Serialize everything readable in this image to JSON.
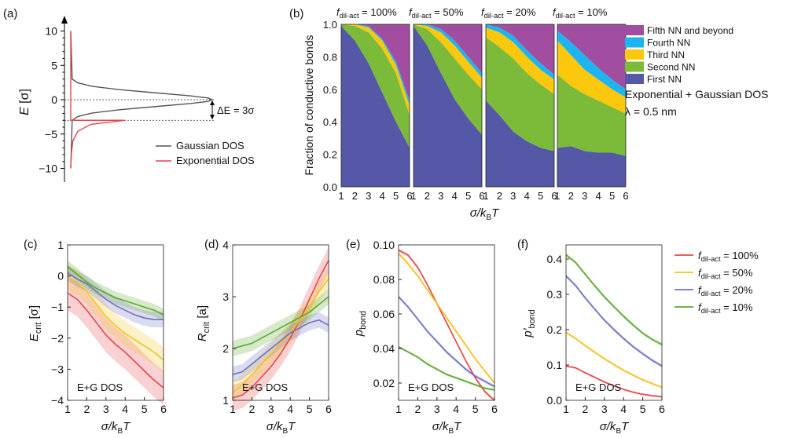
{
  "colors": {
    "red": "#e8474a",
    "yellow": "#f3c21e",
    "blue": "#6f6fc4",
    "green": "#5ba82d",
    "fifth": "#a24ea0",
    "fourth": "#1eb4ef",
    "third": "#fbc80e",
    "second": "#7cbb3a",
    "first": "#5558a7",
    "gauss": "#555555",
    "exp": "#e8474a"
  },
  "panels": {
    "a": "(a)",
    "b": "(b)",
    "c": "(c)",
    "d": "(d)",
    "e": "(e)",
    "f": "(f)"
  },
  "common": {
    "xlabel": "σ/kBT",
    "eg_dos": "E+G DOS",
    "x_ticks": [
      "1",
      "2",
      "3",
      "4",
      "5",
      "6"
    ]
  },
  "chart_data": [
    {
      "id": "a",
      "type": "line",
      "ylabel": "E [σ]",
      "ylim": [
        -12,
        12
      ],
      "y_ticks": [
        "10",
        "5",
        "0",
        "−5",
        "−10"
      ],
      "annotation": "ΔE = 3σ",
      "legend": [
        "Gaussian DOS",
        "Exponential DOS"
      ],
      "dashed_levels": [
        0,
        -3
      ],
      "series": [
        {
          "name": "Gaussian DOS",
          "color_key": "gauss",
          "x": [
            0,
            0.01,
            0.05,
            0.15,
            0.35,
            0.6,
            0.85,
            0.97,
            1.0,
            0.97,
            0.85,
            0.6,
            0.35,
            0.15,
            0.05,
            0.01,
            0
          ],
          "y": [
            10,
            3.0,
            2.45,
            1.95,
            1.45,
            1.0,
            0.55,
            0.25,
            0,
            -0.25,
            -0.55,
            -1.0,
            -1.45,
            -1.95,
            -2.45,
            -3.0,
            -10
          ]
        },
        {
          "name": "Exponential DOS",
          "color_key": "exp",
          "x": [
            0,
            0,
            0.08,
            0.38,
            0.14,
            0.05,
            0.015,
            0.004,
            0
          ],
          "y": [
            10,
            -3.0,
            -3.0,
            -3.0,
            -3.6,
            -4.6,
            -6.0,
            -8.0,
            -10
          ]
        }
      ]
    },
    {
      "id": "b",
      "type": "area",
      "ylabel": "Fraction of conductive bonds",
      "ylim": [
        0,
        1
      ],
      "y_ticks": [
        "0.0",
        "0.2",
        "0.4",
        "0.6",
        "0.8",
        "1.0"
      ],
      "legend": [
        "Fifth NN and beyond",
        "Fourth NN",
        "Third NN",
        "Second NN",
        "First NN"
      ],
      "title_note": "Exponential + Gaussian DOS",
      "lambda_note": "λ = 0.5 nm",
      "x": [
        1,
        2,
        3,
        4,
        5,
        6
      ],
      "subplots": [
        {
          "title": "fdil-act = 100%",
          "cumulative": {
            "first": [
              0.99,
              0.9,
              0.76,
              0.58,
              0.4,
              0.24
            ],
            "second": [
              1.0,
              0.99,
              0.95,
              0.85,
              0.7,
              0.44
            ],
            "third": [
              1.0,
              1.0,
              0.98,
              0.9,
              0.75,
              0.5
            ],
            "fourth": [
              1.0,
              1.0,
              0.99,
              0.91,
              0.77,
              0.53
            ]
          }
        },
        {
          "title": "fdil-act = 50%",
          "cumulative": {
            "first": [
              0.99,
              0.87,
              0.7,
              0.54,
              0.42,
              0.32
            ],
            "second": [
              1.0,
              0.97,
              0.89,
              0.79,
              0.69,
              0.6
            ],
            "third": [
              1.0,
              0.99,
              0.95,
              0.87,
              0.77,
              0.67
            ],
            "fourth": [
              1.0,
              1.0,
              0.97,
              0.9,
              0.8,
              0.7
            ]
          }
        },
        {
          "title": "fdil-act = 20%",
          "cumulative": {
            "first": [
              0.53,
              0.44,
              0.34,
              0.28,
              0.24,
              0.22
            ],
            "second": [
              0.92,
              0.86,
              0.79,
              0.7,
              0.63,
              0.57
            ],
            "third": [
              0.98,
              0.95,
              0.89,
              0.8,
              0.72,
              0.66
            ],
            "fourth": [
              1.0,
              0.98,
              0.93,
              0.84,
              0.76,
              0.69
            ]
          }
        },
        {
          "title": "fdil-act = 10%",
          "cumulative": {
            "first": [
              0.24,
              0.25,
              0.22,
              0.21,
              0.21,
              0.19
            ],
            "second": [
              0.69,
              0.62,
              0.57,
              0.53,
              0.49,
              0.45
            ],
            "third": [
              0.9,
              0.81,
              0.72,
              0.66,
              0.6,
              0.55
            ],
            "fourth": [
              0.96,
              0.89,
              0.81,
              0.73,
              0.66,
              0.6
            ]
          }
        }
      ]
    },
    {
      "id": "c",
      "type": "line",
      "ylabel": "Ecrit [σ]",
      "ylim": [
        -4,
        1
      ],
      "y_ticks": [
        "1",
        "0",
        "−1",
        "−2",
        "−3",
        "−4"
      ],
      "x": [
        1,
        1.5,
        2,
        2.5,
        3,
        3.5,
        4,
        4.5,
        5,
        5.5,
        6
      ],
      "series": [
        {
          "name": "fdil-act = 100%",
          "color_key": "red",
          "values": [
            -0.55,
            -0.75,
            -1.1,
            -1.5,
            -1.9,
            -2.2,
            -2.45,
            -2.75,
            -3.05,
            -3.35,
            -3.6
          ],
          "band": 0.55
        },
        {
          "name": "fdil-act = 50%",
          "color_key": "yellow",
          "values": [
            -0.05,
            -0.2,
            -0.5,
            -0.9,
            -1.3,
            -1.6,
            -1.85,
            -2.05,
            -2.25,
            -2.45,
            -2.7
          ],
          "band": 0.4
        },
        {
          "name": "fdil-act = 20%",
          "color_key": "blue",
          "values": [
            0.1,
            -0.1,
            -0.25,
            -0.5,
            -0.75,
            -0.95,
            -1.1,
            -1.25,
            -1.35,
            -1.4,
            -1.4
          ],
          "band": 0.25
        },
        {
          "name": "fdil-act = 10%",
          "color_key": "green",
          "values": [
            0.3,
            0.05,
            -0.2,
            -0.4,
            -0.55,
            -0.7,
            -0.8,
            -0.9,
            -1.0,
            -1.1,
            -1.25
          ],
          "band": 0.2
        }
      ]
    },
    {
      "id": "d",
      "type": "line",
      "ylabel": "Rcrit [a]",
      "ylim": [
        1,
        4
      ],
      "y_ticks": [
        "4",
        "3",
        "2",
        "1"
      ],
      "x": [
        1,
        1.5,
        2,
        2.5,
        3,
        3.5,
        4,
        4.5,
        5,
        5.5,
        6
      ],
      "series": [
        {
          "name": "fdil-act = 100%",
          "color_key": "red",
          "values": [
            1.05,
            1.1,
            1.25,
            1.45,
            1.65,
            1.9,
            2.2,
            2.55,
            2.95,
            3.35,
            3.7
          ],
          "band": 0.25
        },
        {
          "name": "fdil-act = 50%",
          "color_key": "yellow",
          "values": [
            1.15,
            1.3,
            1.5,
            1.7,
            1.9,
            2.1,
            2.3,
            2.55,
            2.8,
            3.1,
            3.35
          ],
          "band": 0.2
        },
        {
          "name": "fdil-act = 20%",
          "color_key": "blue",
          "values": [
            1.5,
            1.55,
            1.7,
            1.85,
            2.0,
            2.15,
            2.3,
            2.4,
            2.5,
            2.55,
            2.45
          ],
          "band": 0.15
        },
        {
          "name": "fdil-act = 10%",
          "color_key": "green",
          "values": [
            2.0,
            2.05,
            2.1,
            2.2,
            2.3,
            2.4,
            2.5,
            2.6,
            2.7,
            2.85,
            3.0
          ],
          "band": 0.15
        }
      ]
    },
    {
      "id": "e",
      "type": "line",
      "ylabel": "pbond",
      "ylim": [
        0.01,
        0.1
      ],
      "y_ticks": [
        "0.10",
        "0.08",
        "0.06",
        "0.04",
        "0.02"
      ],
      "x": [
        1,
        1.5,
        2,
        2.5,
        3,
        3.5,
        4,
        4.5,
        5,
        5.5,
        6
      ],
      "series": [
        {
          "name": "fdil-act = 100%",
          "color_key": "red",
          "values": [
            0.097,
            0.094,
            0.087,
            0.077,
            0.066,
            0.055,
            0.044,
            0.033,
            0.023,
            0.015,
            0.01
          ],
          "band": 0.001
        },
        {
          "name": "fdil-act = 50%",
          "color_key": "yellow",
          "values": [
            0.095,
            0.089,
            0.082,
            0.074,
            0.066,
            0.058,
            0.05,
            0.042,
            0.034,
            0.027,
            0.02
          ],
          "band": 0.001
        },
        {
          "name": "fdil-act = 20%",
          "color_key": "blue",
          "values": [
            0.07,
            0.064,
            0.057,
            0.05,
            0.044,
            0.038,
            0.033,
            0.028,
            0.024,
            0.021,
            0.018
          ],
          "band": 0.001
        },
        {
          "name": "fdil-act = 10%",
          "color_key": "green",
          "values": [
            0.041,
            0.038,
            0.035,
            0.031,
            0.028,
            0.025,
            0.023,
            0.021,
            0.019,
            0.017,
            0.016
          ],
          "band": 0.0008
        }
      ]
    },
    {
      "id": "f",
      "type": "line",
      "ylabel": "p′bond",
      "ylim": [
        0,
        0.44
      ],
      "y_ticks": [
        "0.4",
        "0.3",
        "0.2",
        "0.1",
        "0.0"
      ],
      "x": [
        1,
        1.5,
        2,
        2.5,
        3,
        3.5,
        4,
        4.5,
        5,
        5.5,
        6
      ],
      "series": [
        {
          "name": "fdil-act = 100%",
          "color_key": "red",
          "values": [
            0.097,
            0.092,
            0.078,
            0.065,
            0.052,
            0.041,
            0.031,
            0.023,
            0.017,
            0.013,
            0.01
          ],
          "band": 0.003
        },
        {
          "name": "fdil-act = 50%",
          "color_key": "yellow",
          "values": [
            0.192,
            0.175,
            0.155,
            0.136,
            0.118,
            0.101,
            0.085,
            0.071,
            0.058,
            0.047,
            0.037
          ],
          "band": 0.004
        },
        {
          "name": "fdil-act = 20%",
          "color_key": "blue",
          "values": [
            0.352,
            0.325,
            0.29,
            0.258,
            0.227,
            0.2,
            0.175,
            0.152,
            0.132,
            0.113,
            0.097
          ],
          "band": 0.005
        },
        {
          "name": "fdil-act = 10%",
          "color_key": "green",
          "values": [
            0.412,
            0.39,
            0.357,
            0.324,
            0.293,
            0.265,
            0.238,
            0.213,
            0.19,
            0.172,
            0.158
          ],
          "band": 0.005
        }
      ]
    }
  ],
  "bottom_legend": [
    {
      "color_key": "red",
      "pct": "= 100%"
    },
    {
      "color_key": "yellow",
      "pct": "= 50%"
    },
    {
      "color_key": "blue",
      "pct": "= 20%"
    },
    {
      "color_key": "green",
      "pct": "= 10%"
    }
  ]
}
